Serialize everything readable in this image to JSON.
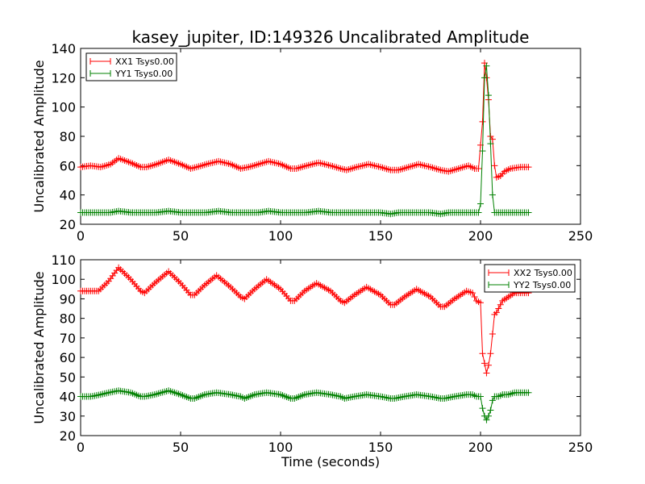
{
  "title": "kasey_jupiter, ID:149326 Uncalibrated Amplitude",
  "colors": {
    "red": "#ff0000",
    "green": "#008000"
  },
  "chart_data": [
    {
      "type": "line",
      "title": "kasey_jupiter, ID:149326 Uncalibrated Amplitude",
      "xlabel": "",
      "ylabel": "Uncalibrated Amplitude",
      "xlim": [
        0,
        250
      ],
      "ylim": [
        20,
        140
      ],
      "xticks": [
        "0",
        "50",
        "100",
        "150",
        "200",
        "250"
      ],
      "yticks": [
        "20",
        "40",
        "60",
        "80",
        "100",
        "120",
        "140"
      ],
      "grid": false,
      "legend_position": "top-left",
      "series": [
        {
          "name": "XX1 Tsys0.00",
          "color": "#ff0000",
          "marker": "+",
          "x": [
            0,
            5,
            10,
            15,
            19,
            25,
            30,
            33,
            38,
            44,
            50,
            55,
            58,
            63,
            69,
            75,
            80,
            84,
            89,
            94,
            100,
            105,
            108,
            113,
            119,
            125,
            130,
            133,
            138,
            144,
            150,
            155,
            159,
            164,
            169,
            175,
            180,
            184,
            189,
            194,
            197,
            199,
            200,
            201,
            202,
            203,
            204,
            205,
            206,
            207,
            208,
            210,
            212,
            215,
            220,
            224
          ],
          "y": [
            59,
            60,
            59,
            61,
            65,
            62,
            59,
            59,
            61,
            64,
            61,
            58,
            59,
            61,
            63,
            61,
            58,
            59,
            61,
            63,
            61,
            58,
            58,
            60,
            62,
            60,
            58,
            57,
            59,
            61,
            59,
            57,
            57,
            59,
            61,
            59,
            57,
            56,
            58,
            60,
            58,
            58,
            74,
            90,
            130,
            120,
            105,
            80,
            78,
            60,
            52,
            53,
            56,
            58,
            59,
            59
          ]
        },
        {
          "name": "YY1 Tsys0.00",
          "color": "#008000",
          "marker": "+",
          "x": [
            0,
            5,
            10,
            15,
            19,
            25,
            30,
            33,
            38,
            44,
            50,
            55,
            58,
            63,
            69,
            75,
            80,
            84,
            89,
            94,
            100,
            105,
            108,
            113,
            119,
            125,
            130,
            133,
            138,
            144,
            150,
            155,
            159,
            164,
            169,
            175,
            180,
            184,
            189,
            194,
            197,
            199,
            200,
            201,
            202,
            203,
            204,
            205,
            206,
            207,
            208,
            210,
            212,
            215,
            220,
            224
          ],
          "y": [
            28,
            28,
            28,
            28,
            29,
            28,
            28,
            28,
            28,
            29,
            28,
            28,
            28,
            28,
            29,
            28,
            28,
            28,
            28,
            29,
            28,
            28,
            28,
            28,
            29,
            28,
            28,
            28,
            28,
            28,
            28,
            27,
            28,
            28,
            28,
            28,
            27,
            28,
            28,
            28,
            28,
            28,
            34,
            70,
            120,
            128,
            108,
            75,
            40,
            28,
            28,
            28,
            28,
            28,
            28,
            28
          ]
        }
      ]
    },
    {
      "type": "line",
      "title": "",
      "xlabel": "Time (seconds)",
      "ylabel": "Uncalibrated Amplitude",
      "xlim": [
        0,
        250
      ],
      "ylim": [
        20,
        110
      ],
      "xticks": [
        "0",
        "50",
        "100",
        "150",
        "200",
        "250"
      ],
      "yticks": [
        "20",
        "30",
        "40",
        "50",
        "60",
        "70",
        "80",
        "90",
        "100",
        "110"
      ],
      "grid": false,
      "legend_position": "top-right",
      "series": [
        {
          "name": "XX2 Tsys0.00",
          "color": "#ff0000",
          "marker": "+",
          "x": [
            0,
            5,
            9,
            14,
            19,
            25,
            30,
            32,
            37,
            44,
            50,
            55,
            57,
            62,
            68,
            75,
            80,
            82,
            87,
            93,
            100,
            105,
            107,
            112,
            118,
            125,
            130,
            132,
            137,
            143,
            150,
            155,
            157,
            162,
            168,
            175,
            180,
            182,
            187,
            193,
            196,
            198,
            200,
            201,
            202,
            203,
            204,
            205,
            206,
            207,
            208,
            209,
            211,
            214,
            217,
            220,
            224
          ],
          "y": [
            94,
            94,
            94,
            99,
            106,
            100,
            94,
            93,
            98,
            104,
            98,
            92,
            92,
            97,
            102,
            96,
            91,
            90,
            95,
            100,
            95,
            89,
            89,
            94,
            98,
            94,
            89,
            88,
            92,
            96,
            92,
            87,
            87,
            91,
            95,
            91,
            86,
            86,
            90,
            94,
            93,
            89,
            88,
            62,
            57,
            52,
            56,
            62,
            72,
            82,
            83,
            85,
            89,
            91,
            93,
            93,
            93
          ]
        },
        {
          "name": "YY2 Tsys0.00",
          "color": "#008000",
          "marker": "+",
          "x": [
            0,
            5,
            10,
            14,
            19,
            25,
            30,
            32,
            37,
            44,
            50,
            55,
            57,
            62,
            68,
            75,
            80,
            82,
            87,
            93,
            100,
            105,
            107,
            112,
            118,
            125,
            130,
            132,
            137,
            143,
            150,
            155,
            157,
            162,
            168,
            175,
            180,
            182,
            187,
            193,
            196,
            198,
            200,
            201,
            202,
            203,
            204,
            205,
            206,
            207,
            208,
            209,
            211,
            214,
            217,
            220,
            224
          ],
          "y": [
            40,
            40,
            41,
            42,
            43,
            42,
            40,
            40,
            41,
            43,
            41,
            39,
            39,
            41,
            42,
            41,
            40,
            39,
            41,
            42,
            41,
            39,
            39,
            41,
            42,
            41,
            40,
            39,
            40,
            41,
            40,
            39,
            39,
            40,
            41,
            40,
            39,
            39,
            40,
            41,
            41,
            40,
            40,
            34,
            30,
            28,
            30,
            33,
            38,
            40,
            40,
            40,
            41,
            41,
            42,
            42,
            42
          ]
        }
      ]
    }
  ]
}
